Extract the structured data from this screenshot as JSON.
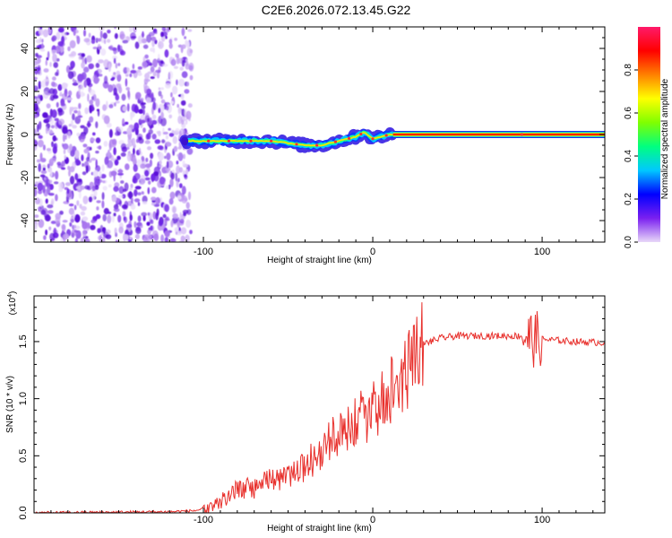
{
  "title": "C2E6.2026.072.13.45.G22",
  "chart_data": [
    {
      "type": "heatmap",
      "title": "C2E6.2026.072.13.45.G22",
      "xlabel": "Height of straight line (km)",
      "ylabel": "Frequency (Hz)",
      "xlim": [
        -200,
        137
      ],
      "ylim": [
        -50,
        50
      ],
      "x_ticks": [
        -100,
        0,
        100
      ],
      "x_tick_labels": [
        "-100",
        "0",
        "100"
      ],
      "y_ticks": [
        -40,
        -20,
        0,
        20,
        40
      ],
      "y_tick_labels": [
        "-40",
        "-20",
        "0",
        "20",
        "40"
      ],
      "noise_region_x": [
        -200,
        -111
      ],
      "signal_start_x": -111,
      "signal_track": [
        {
          "x": -111,
          "y": -3
        },
        {
          "x": -100,
          "y": -3
        },
        {
          "x": -80,
          "y": -3
        },
        {
          "x": -60,
          "y": -3
        },
        {
          "x": -40,
          "y": -5
        },
        {
          "x": -30,
          "y": -5
        },
        {
          "x": -20,
          "y": -3
        },
        {
          "x": -10,
          "y": -1
        },
        {
          "x": -5,
          "y": 1
        },
        {
          "x": 0,
          "y": -2
        },
        {
          "x": 5,
          "y": -1
        },
        {
          "x": 10,
          "y": 0
        },
        {
          "x": 20,
          "y": 0
        },
        {
          "x": 137,
          "y": 0
        }
      ],
      "colorbar": {
        "label": "Normalized spectral amplitude",
        "range": [
          0,
          1
        ],
        "ticks": [
          0.0,
          0.2,
          0.4,
          0.6,
          0.8
        ],
        "tick_labels": [
          "0.0",
          "0.2",
          "0.4",
          "0.6",
          "0.8"
        ],
        "colors": [
          "#e8d8f8",
          "#7a20f0",
          "#0000ff",
          "#00c8ff",
          "#00ff80",
          "#80ff00",
          "#ffff00",
          "#ff8000",
          "#ff0000",
          "#ff1a6a"
        ]
      }
    },
    {
      "type": "line",
      "xlabel": "Height of straight line (km)",
      "ylabel": "SNR (10 * v/v)",
      "multiplier_label": "(x10",
      "multiplier_exp": "4",
      "xlim": [
        -200,
        137
      ],
      "ylim": [
        0,
        1.9
      ],
      "x_ticks": [
        -100,
        0,
        100
      ],
      "x_tick_labels": [
        "-100",
        "0",
        "100"
      ],
      "y_ticks": [
        0.0,
        0.5,
        1.0,
        1.5
      ],
      "y_tick_labels": [
        "0.0",
        "0.5",
        "1.0",
        "1.5"
      ],
      "series": [
        {
          "name": "SNR",
          "color": "#e8302c",
          "x": [
            -200,
            -120,
            -105,
            -95,
            -90,
            -85,
            -80,
            -75,
            -70,
            -65,
            -60,
            -55,
            -50,
            -45,
            -40,
            -35,
            -30,
            -25,
            -20,
            -15,
            -10,
            -5,
            0,
            5,
            10,
            15,
            20,
            25,
            30,
            40,
            50,
            60,
            70,
            80,
            85,
            90,
            95,
            100,
            110,
            120,
            137
          ],
          "y": [
            0.0,
            0.01,
            0.02,
            0.05,
            0.1,
            0.15,
            0.2,
            0.22,
            0.2,
            0.25,
            0.3,
            0.28,
            0.3,
            0.35,
            0.4,
            0.48,
            0.55,
            0.62,
            0.7,
            0.75,
            0.8,
            0.85,
            0.9,
            0.98,
            1.05,
            1.12,
            1.25,
            1.4,
            1.48,
            1.53,
            1.55,
            1.55,
            1.55,
            1.55,
            1.55,
            1.55,
            1.52,
            1.52,
            1.51,
            1.5,
            1.49
          ]
        }
      ]
    }
  ]
}
